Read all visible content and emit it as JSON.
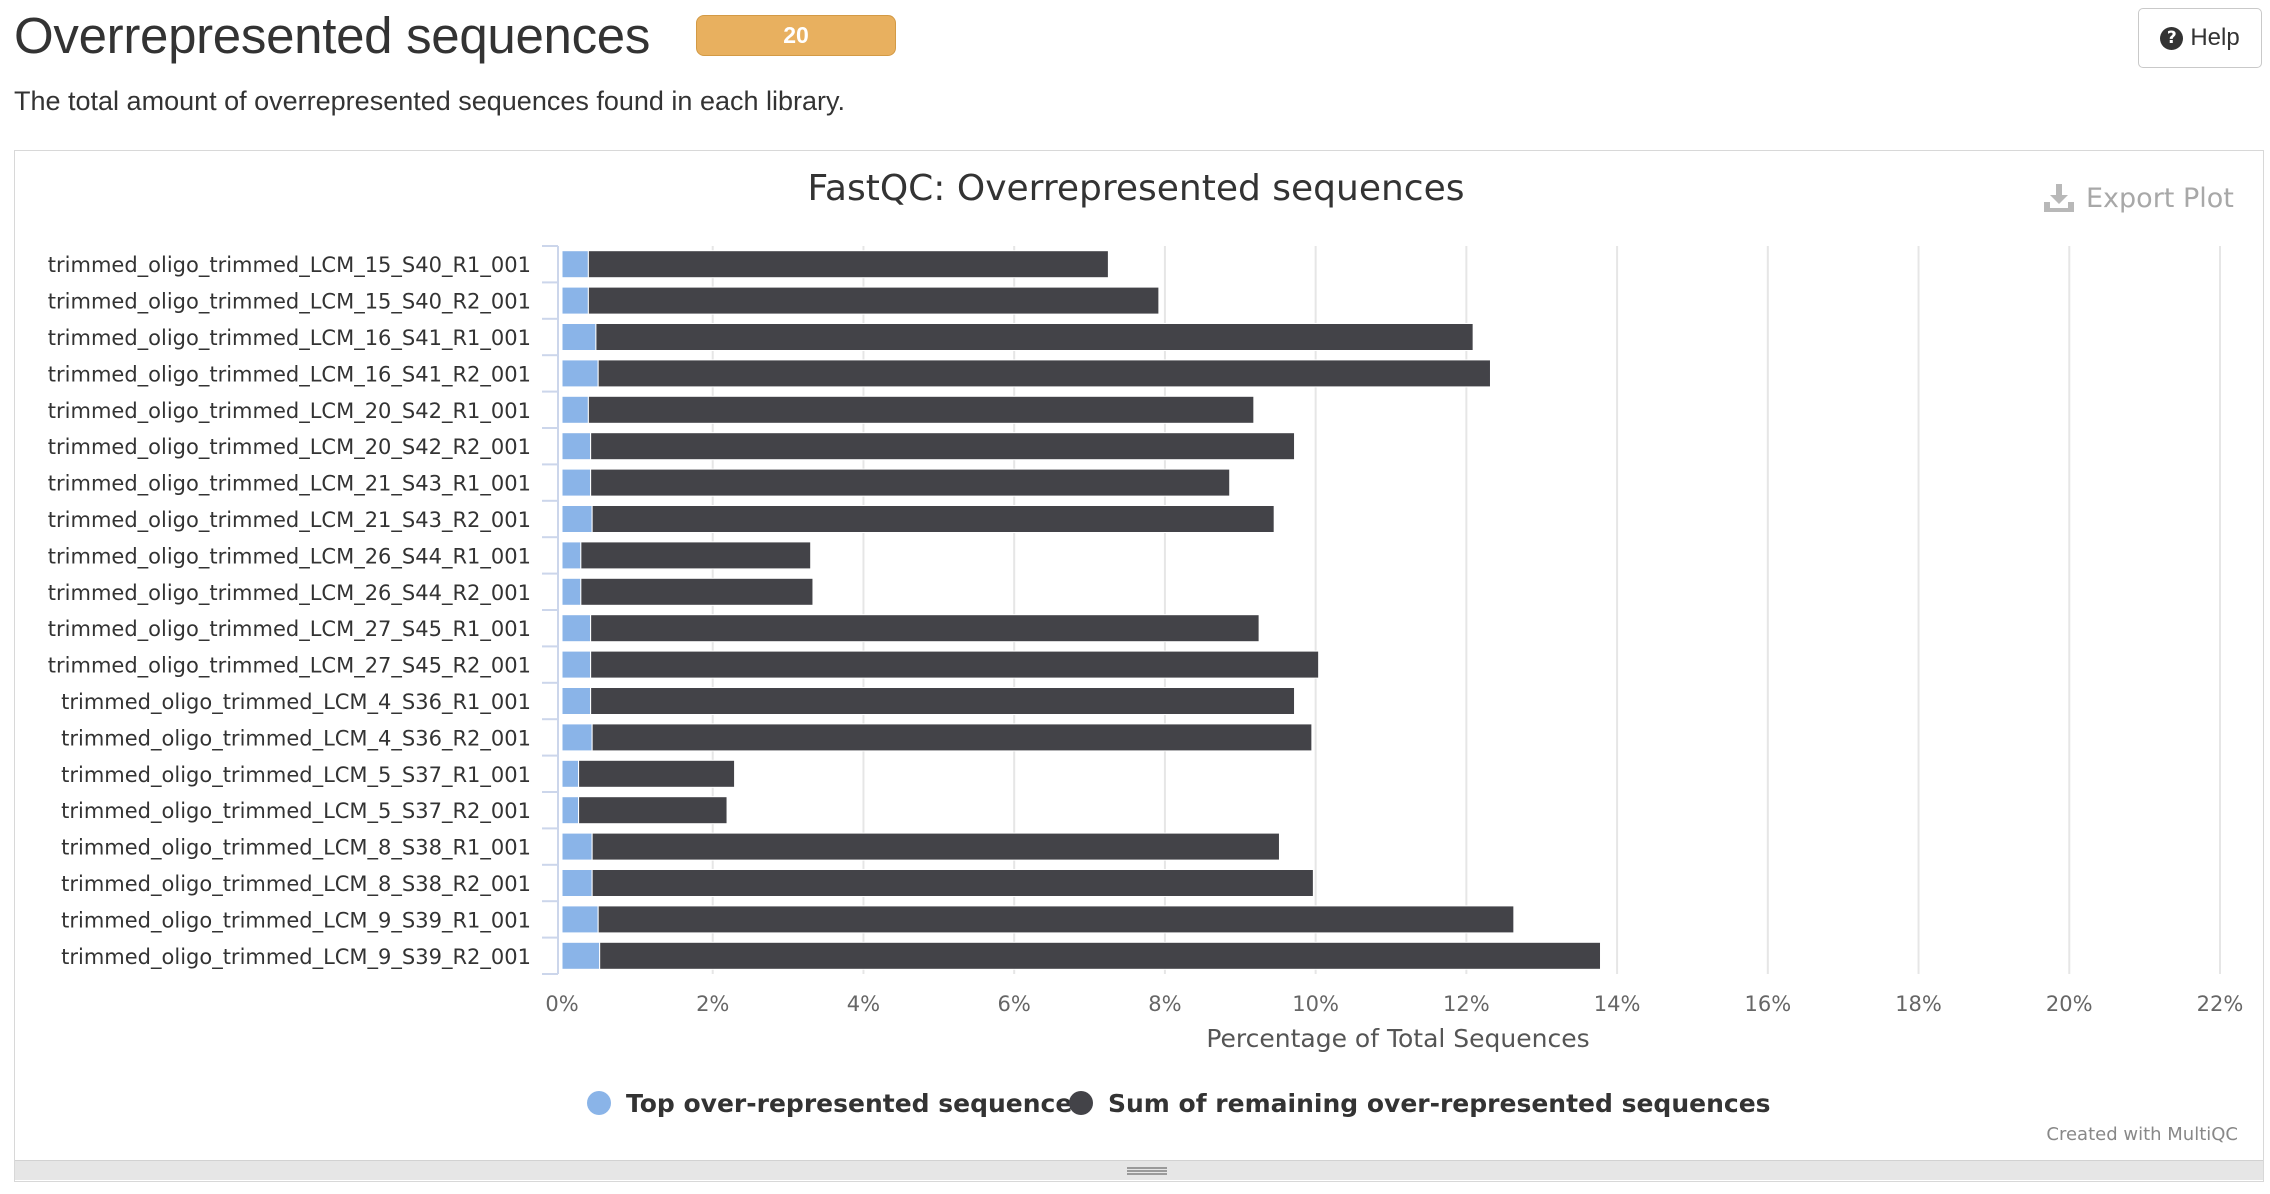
{
  "header": {
    "title": "Overrepresented sequences",
    "badge": "20",
    "help_label": "Help",
    "description": "The total amount of overrepresented sequences found in each library."
  },
  "plot": {
    "export_label": "Export Plot",
    "credit": "Created with MultiQC"
  },
  "colors": {
    "top_series": "#8ab4e8",
    "rest_series": "#434348",
    "badge": "#e8b05f"
  },
  "chart_data": {
    "type": "bar",
    "orientation": "horizontal",
    "stacked": true,
    "title": "FastQC: Overrepresented sequences",
    "xlabel": "Percentage of Total Sequences",
    "ylabel": "",
    "xlim": [
      0,
      22
    ],
    "xticks": [
      "0%",
      "2%",
      "4%",
      "6%",
      "8%",
      "10%",
      "12%",
      "14%",
      "16%",
      "18%",
      "20%",
      "22%"
    ],
    "grid": true,
    "legend": "bottom-center",
    "categories": [
      "trimmed_oligo_trimmed_LCM_15_S40_R1_001",
      "trimmed_oligo_trimmed_LCM_15_S40_R2_001",
      "trimmed_oligo_trimmed_LCM_16_S41_R1_001",
      "trimmed_oligo_trimmed_LCM_16_S41_R2_001",
      "trimmed_oligo_trimmed_LCM_20_S42_R1_001",
      "trimmed_oligo_trimmed_LCM_20_S42_R2_001",
      "trimmed_oligo_trimmed_LCM_21_S43_R1_001",
      "trimmed_oligo_trimmed_LCM_21_S43_R2_001",
      "trimmed_oligo_trimmed_LCM_26_S44_R1_001",
      "trimmed_oligo_trimmed_LCM_26_S44_R2_001",
      "trimmed_oligo_trimmed_LCM_27_S45_R1_001",
      "trimmed_oligo_trimmed_LCM_27_S45_R2_001",
      "trimmed_oligo_trimmed_LCM_4_S36_R1_001",
      "trimmed_oligo_trimmed_LCM_4_S36_R2_001",
      "trimmed_oligo_trimmed_LCM_5_S37_R1_001",
      "trimmed_oligo_trimmed_LCM_5_S37_R2_001",
      "trimmed_oligo_trimmed_LCM_8_S38_R1_001",
      "trimmed_oligo_trimmed_LCM_8_S38_R2_001",
      "trimmed_oligo_trimmed_LCM_9_S39_R1_001",
      "trimmed_oligo_trimmed_LCM_9_S39_R2_001"
    ],
    "series": [
      {
        "name": "Top over-represented sequence",
        "values": [
          0.35,
          0.35,
          0.45,
          0.48,
          0.35,
          0.38,
          0.38,
          0.4,
          0.25,
          0.25,
          0.38,
          0.38,
          0.38,
          0.4,
          0.22,
          0.22,
          0.4,
          0.4,
          0.48,
          0.5
        ]
      },
      {
        "name": "Sum of remaining over-represented sequences",
        "values": [
          6.9,
          7.57,
          11.64,
          11.84,
          8.83,
          9.34,
          8.48,
          9.05,
          3.05,
          3.08,
          8.87,
          9.66,
          9.34,
          9.55,
          2.07,
          1.97,
          9.12,
          9.57,
          12.15,
          13.28
        ]
      }
    ]
  }
}
